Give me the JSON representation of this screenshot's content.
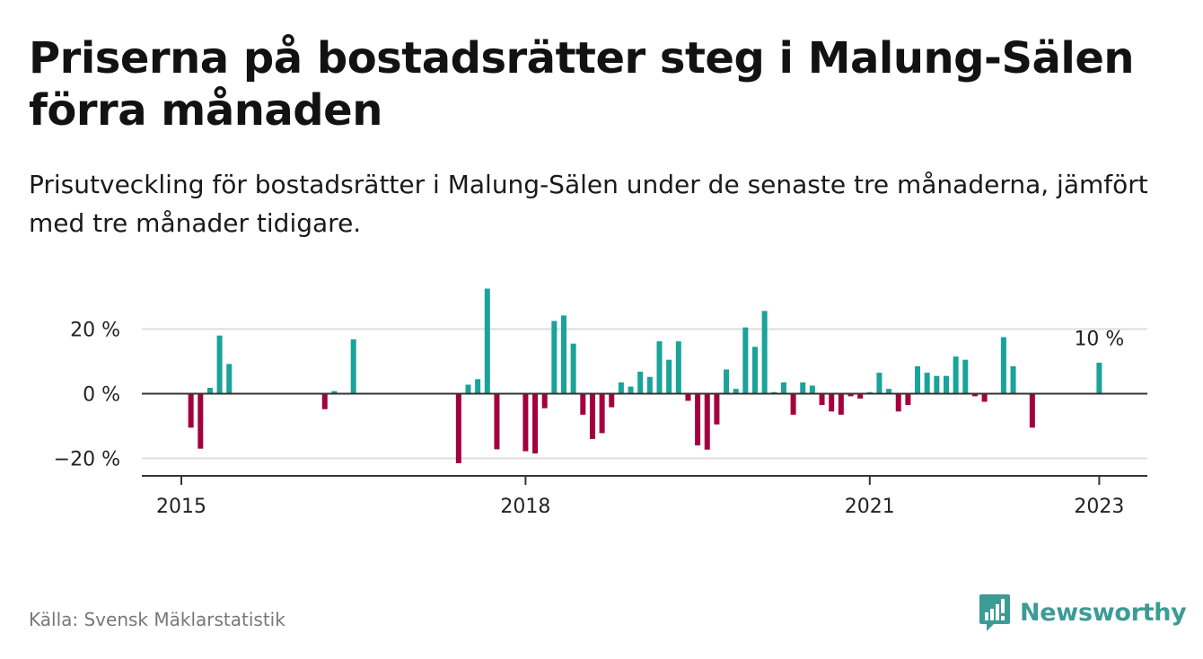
{
  "title": "Priserna på bostadsrätter steg i Malung-Sälen förra månaden",
  "subtitle": "Prisutveckling för bostadsrätter i Malung-Sälen under de senaste tre månaderna, jämfört med tre månader tidigare.",
  "source": "Källa: Svensk Mäklarstatistik",
  "brand": "Newsworthy",
  "colors": {
    "positive": "#1aa39a",
    "negative": "#a3003d",
    "grid": "#dddddd",
    "axis": "#333333",
    "brand": "#3d9b95"
  },
  "icons": {
    "brand": "bar-chart-speech-bubble-icon"
  },
  "chart_data": {
    "type": "bar",
    "title": "",
    "xlabel": "",
    "ylabel": "",
    "ylim": [
      -25,
      35
    ],
    "grid": true,
    "y_ticks": [
      {
        "value": 20,
        "label": "20 %"
      },
      {
        "value": 0,
        "label": "0 %"
      },
      {
        "value": -20,
        "label": "−20 %"
      }
    ],
    "x_ticks": [
      {
        "value": "2015-01",
        "label": "2015"
      },
      {
        "value": "2018-01",
        "label": "2018"
      },
      {
        "value": "2021-01",
        "label": "2021"
      },
      {
        "value": "2023-01",
        "label": "2023"
      }
    ],
    "annotation": {
      "x": "2023-01",
      "y": 10,
      "label": "10 %"
    },
    "series": [
      {
        "name": "",
        "points": [
          {
            "x": "2015-02",
            "y": -10.5
          },
          {
            "x": "2015-03",
            "y": -17
          },
          {
            "x": "2015-04",
            "y": 1.8
          },
          {
            "x": "2015-05",
            "y": 18
          },
          {
            "x": "2015-06",
            "y": 9.2
          },
          {
            "x": "2016-04",
            "y": -4.8
          },
          {
            "x": "2016-05",
            "y": 0.8
          },
          {
            "x": "2016-07",
            "y": 16.8
          },
          {
            "x": "2017-06",
            "y": -21.5
          },
          {
            "x": "2017-07",
            "y": 2.8
          },
          {
            "x": "2017-08",
            "y": 4.5
          },
          {
            "x": "2017-09",
            "y": 32.5
          },
          {
            "x": "2017-10",
            "y": -17.2
          },
          {
            "x": "2018-01",
            "y": -17.8
          },
          {
            "x": "2018-02",
            "y": -18.5
          },
          {
            "x": "2018-03",
            "y": -4.5
          },
          {
            "x": "2018-04",
            "y": 22.5
          },
          {
            "x": "2018-05",
            "y": 24.2
          },
          {
            "x": "2018-06",
            "y": 15.5
          },
          {
            "x": "2018-07",
            "y": -6.5
          },
          {
            "x": "2018-08",
            "y": -14
          },
          {
            "x": "2018-09",
            "y": -12.2
          },
          {
            "x": "2018-10",
            "y": -4.2
          },
          {
            "x": "2018-11",
            "y": 3.5
          },
          {
            "x": "2018-12",
            "y": 2.2
          },
          {
            "x": "2019-01",
            "y": 6.8
          },
          {
            "x": "2019-02",
            "y": 5.2
          },
          {
            "x": "2019-03",
            "y": 16.2
          },
          {
            "x": "2019-04",
            "y": 10.5
          },
          {
            "x": "2019-05",
            "y": 16.2
          },
          {
            "x": "2019-06",
            "y": -2.2
          },
          {
            "x": "2019-07",
            "y": -16
          },
          {
            "x": "2019-08",
            "y": -17.3
          },
          {
            "x": "2019-09",
            "y": -9.5
          },
          {
            "x": "2019-10",
            "y": 7.5
          },
          {
            "x": "2019-11",
            "y": 1.5
          },
          {
            "x": "2019-12",
            "y": 20.5
          },
          {
            "x": "2020-01",
            "y": 14.5
          },
          {
            "x": "2020-02",
            "y": 25.6
          },
          {
            "x": "2020-03",
            "y": 0.5
          },
          {
            "x": "2020-04",
            "y": 3.5
          },
          {
            "x": "2020-05",
            "y": -6.5
          },
          {
            "x": "2020-06",
            "y": 3.5
          },
          {
            "x": "2020-07",
            "y": 2.5
          },
          {
            "x": "2020-08",
            "y": -3.5
          },
          {
            "x": "2020-09",
            "y": -5.5
          },
          {
            "x": "2020-10",
            "y": -6.5
          },
          {
            "x": "2020-11",
            "y": -0.8
          },
          {
            "x": "2020-12",
            "y": -1.5
          },
          {
            "x": "2021-01",
            "y": 0.5
          },
          {
            "x": "2021-02",
            "y": 6.5
          },
          {
            "x": "2021-03",
            "y": 1.5
          },
          {
            "x": "2021-04",
            "y": -5.5
          },
          {
            "x": "2021-05",
            "y": -3.5
          },
          {
            "x": "2021-06",
            "y": 8.5
          },
          {
            "x": "2021-07",
            "y": 6.5
          },
          {
            "x": "2021-08",
            "y": 5.5
          },
          {
            "x": "2021-09",
            "y": 5.5
          },
          {
            "x": "2021-10",
            "y": 11.5
          },
          {
            "x": "2021-11",
            "y": 10.5
          },
          {
            "x": "2021-12",
            "y": -0.8
          },
          {
            "x": "2022-01",
            "y": -2.5
          },
          {
            "x": "2022-03",
            "y": 17.5
          },
          {
            "x": "2022-04",
            "y": 8.5
          },
          {
            "x": "2022-06",
            "y": -10.5
          },
          {
            "x": "2023-01",
            "y": 9.6
          }
        ]
      }
    ]
  }
}
